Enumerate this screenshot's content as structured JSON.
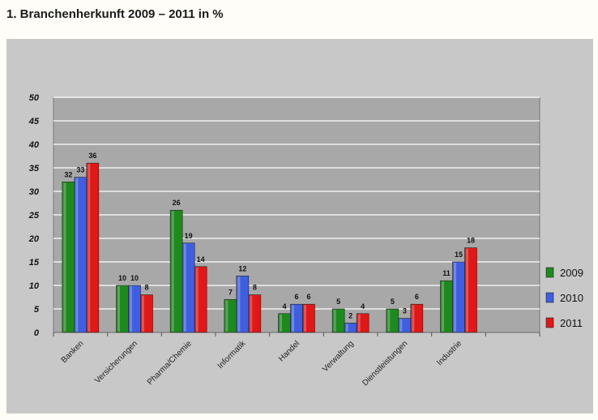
{
  "heading": "1.  Branchenherkunft 2009 – 2011 in %",
  "chart_data": {
    "type": "bar",
    "title": "",
    "xlabel": "",
    "ylabel": "",
    "ylim": [
      0,
      50
    ],
    "yticks": [
      0,
      5,
      10,
      15,
      20,
      25,
      30,
      35,
      40,
      45,
      50
    ],
    "grid": true,
    "legend_position": "right",
    "categories": [
      "Banken",
      "Versicherungen",
      "Pharma/Chemie",
      "Informatik",
      "Handel",
      "Verwaltung",
      "Dienstleistungen",
      "Industrie",
      ""
    ],
    "series": [
      {
        "name": "2009",
        "color": "#1e8a1e",
        "values": [
          32,
          10,
          26,
          7,
          4,
          5,
          5,
          11,
          null
        ]
      },
      {
        "name": "2010",
        "color": "#3f5fe0",
        "values": [
          33,
          10,
          19,
          12,
          6,
          2,
          3,
          15,
          null
        ]
      },
      {
        "name": "2011",
        "color": "#e01818",
        "values": [
          36,
          8,
          14,
          8,
          6,
          4,
          6,
          18,
          null
        ]
      }
    ]
  }
}
